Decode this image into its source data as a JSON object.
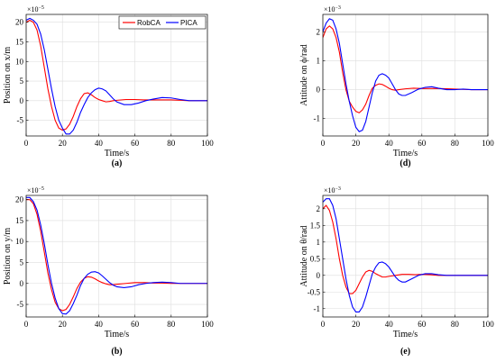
{
  "colors": {
    "robca": "#ff0000",
    "pica": "#0000ff",
    "grid": "#dedede",
    "axis": "#000000"
  },
  "chart_data": [
    {
      "type": "line",
      "caption": "(a)",
      "xlabel": "Time/s",
      "ylabel": "Position on x/m",
      "exponent_label": "×10",
      "exponent_power": "−5",
      "xlim": [
        0,
        100
      ],
      "ylim": [
        -9,
        22
      ],
      "xticks": [
        "0",
        "20",
        "40",
        "60",
        "80",
        "100"
      ],
      "yticks": [
        "-5",
        "0",
        "5",
        "10",
        "15",
        "20"
      ],
      "ytick_values": [
        -5,
        0,
        5,
        10,
        15,
        20
      ],
      "grid": true,
      "legend_position": "top-right",
      "series": [
        {
          "name": "RobCA",
          "color": "#ff0000",
          "x": [
            0,
            2,
            4,
            6,
            8,
            10,
            12,
            14,
            16,
            18,
            20,
            22,
            24,
            26,
            28,
            30,
            32,
            34,
            36,
            38,
            40,
            42,
            44,
            46,
            48,
            50,
            55,
            60,
            65,
            70,
            75,
            80,
            85,
            90,
            95,
            100
          ],
          "y": [
            20,
            20.5,
            20,
            18,
            14,
            8.5,
            3,
            -1.5,
            -5,
            -7,
            -7.5,
            -7.2,
            -6,
            -4,
            -1.5,
            0.5,
            1.8,
            2,
            1.5,
            0.8,
            0.3,
            0,
            -0.3,
            -0.2,
            0,
            0.1,
            0.3,
            0.3,
            0.2,
            0.2,
            0.2,
            0.2,
            0.1,
            0,
            0,
            0
          ]
        },
        {
          "name": "PICA",
          "color": "#0000ff",
          "x": [
            0,
            2,
            4,
            6,
            8,
            10,
            12,
            14,
            16,
            18,
            20,
            22,
            24,
            26,
            28,
            30,
            32,
            34,
            36,
            38,
            40,
            42,
            44,
            46,
            48,
            50,
            54,
            58,
            62,
            66,
            70,
            75,
            80,
            85,
            90,
            95,
            100
          ],
          "y": [
            20.5,
            21,
            20.5,
            19.5,
            17,
            13,
            8,
            3,
            -1.5,
            -5,
            -7,
            -8.5,
            -8.5,
            -7.5,
            -5.5,
            -3,
            -1,
            0.8,
            2,
            2.8,
            3.2,
            3,
            2.5,
            1.5,
            0.5,
            -0.3,
            -1,
            -1,
            -0.6,
            0,
            0.4,
            0.8,
            0.7,
            0.3,
            0,
            0,
            0
          ]
        }
      ]
    },
    {
      "type": "line",
      "caption": "(d)",
      "xlabel": "Time/s",
      "ylabel": "Attitude on ϕ/rad",
      "exponent_label": "×10",
      "exponent_power": "−3",
      "xlim": [
        0,
        100
      ],
      "ylim": [
        -1.6,
        2.6
      ],
      "xticks": [
        "0",
        "20",
        "40",
        "60",
        "80",
        "100"
      ],
      "yticks": [
        "-1",
        "0",
        "1",
        "2"
      ],
      "ytick_values": [
        -1,
        0,
        1,
        2
      ],
      "grid": true,
      "series": [
        {
          "name": "RobCA",
          "color": "#ff0000",
          "x": [
            0,
            2,
            4,
            6,
            8,
            10,
            12,
            14,
            16,
            18,
            20,
            22,
            24,
            26,
            28,
            30,
            32,
            34,
            36,
            38,
            40,
            42,
            44,
            46,
            50,
            55,
            60,
            65,
            70,
            75,
            80,
            85,
            90,
            100
          ],
          "y": [
            1.8,
            2.1,
            2.2,
            2.1,
            1.8,
            1.3,
            0.6,
            0,
            -0.4,
            -0.6,
            -0.75,
            -0.8,
            -0.7,
            -0.5,
            -0.2,
            0.05,
            0.15,
            0.2,
            0.18,
            0.12,
            0.05,
            0,
            -0.02,
            0,
            0.03,
            0.05,
            0.04,
            0.04,
            0.04,
            0.03,
            0.02,
            0.01,
            0,
            0
          ]
        },
        {
          "name": "PICA",
          "color": "#0000ff",
          "x": [
            0,
            2,
            4,
            6,
            8,
            10,
            12,
            14,
            16,
            18,
            20,
            22,
            24,
            26,
            28,
            30,
            32,
            34,
            36,
            38,
            40,
            42,
            44,
            46,
            48,
            50,
            54,
            58,
            62,
            66,
            70,
            75,
            80,
            85,
            90,
            100
          ],
          "y": [
            2.0,
            2.3,
            2.45,
            2.4,
            2.1,
            1.6,
            0.9,
            0.2,
            -0.4,
            -0.9,
            -1.3,
            -1.45,
            -1.4,
            -1.1,
            -0.6,
            -0.1,
            0.3,
            0.5,
            0.55,
            0.5,
            0.4,
            0.2,
            0,
            -0.15,
            -0.2,
            -0.2,
            -0.1,
            0.02,
            0.08,
            0.1,
            0.05,
            0,
            0,
            0.02,
            0,
            0
          ]
        }
      ]
    },
    {
      "type": "line",
      "caption": "(b)",
      "xlabel": "Time/s",
      "ylabel": "Position on y/m",
      "exponent_label": "×10",
      "exponent_power": "−5",
      "xlim": [
        0,
        100
      ],
      "ylim": [
        -8,
        21
      ],
      "xticks": [
        "0",
        "20",
        "40",
        "60",
        "80",
        "100"
      ],
      "yticks": [
        "-5",
        "0",
        "5",
        "10",
        "15",
        "20"
      ],
      "ytick_values": [
        -5,
        0,
        5,
        10,
        15,
        20
      ],
      "grid": true,
      "series": [
        {
          "name": "RobCA",
          "color": "#ff0000",
          "x": [
            0,
            2,
            4,
            6,
            8,
            10,
            12,
            14,
            16,
            18,
            20,
            22,
            24,
            26,
            28,
            30,
            32,
            34,
            36,
            38,
            40,
            42,
            44,
            46,
            48,
            50,
            55,
            60,
            65,
            70,
            75,
            80,
            90,
            100
          ],
          "y": [
            20,
            20,
            19,
            16.5,
            12.5,
            7.5,
            2.5,
            -1.5,
            -4.5,
            -6,
            -6.5,
            -6.2,
            -5,
            -3.2,
            -1.2,
            0.3,
            1.2,
            1.6,
            1.5,
            1.1,
            0.6,
            0.2,
            -0.1,
            -0.3,
            -0.3,
            -0.2,
            0,
            0.2,
            0.2,
            0.1,
            0.1,
            0,
            0,
            0
          ]
        },
        {
          "name": "PICA",
          "color": "#0000ff",
          "x": [
            0,
            2,
            4,
            6,
            8,
            10,
            12,
            14,
            16,
            18,
            20,
            22,
            24,
            26,
            28,
            30,
            32,
            34,
            36,
            38,
            40,
            42,
            44,
            46,
            48,
            50,
            54,
            58,
            62,
            66,
            70,
            75,
            80,
            85,
            90,
            100
          ],
          "y": [
            20.5,
            20.5,
            19.5,
            17.5,
            14,
            9.5,
            4.5,
            0,
            -3.5,
            -6,
            -7.2,
            -7.3,
            -6.5,
            -4.8,
            -2.8,
            -0.5,
            1.2,
            2.2,
            2.7,
            2.8,
            2.5,
            1.8,
            1,
            0.2,
            -0.4,
            -0.8,
            -1,
            -0.8,
            -0.3,
            0,
            0.2,
            0.3,
            0.2,
            0,
            0,
            0
          ]
        }
      ]
    },
    {
      "type": "line",
      "caption": "(e)",
      "xlabel": "Time/s",
      "ylabel": "Attitude on θ/rad",
      "exponent_label": "×10",
      "exponent_power": "−3",
      "xlim": [
        0,
        100
      ],
      "ylim": [
        -1.25,
        2.4
      ],
      "xticks": [
        "0",
        "20",
        "40",
        "60",
        "80",
        "100"
      ],
      "yticks": [
        "-1",
        "-0.5",
        "0",
        "0.5",
        "1",
        "1.5",
        "2"
      ],
      "ytick_values": [
        -1,
        -0.5,
        0,
        0.5,
        1,
        1.5,
        2
      ],
      "grid": true,
      "series": [
        {
          "name": "RobCA",
          "color": "#ff0000",
          "x": [
            0,
            2,
            4,
            6,
            8,
            10,
            12,
            14,
            16,
            18,
            20,
            22,
            24,
            26,
            28,
            30,
            32,
            34,
            36,
            38,
            40,
            44,
            48,
            52,
            56,
            60,
            65,
            70,
            80,
            90,
            100
          ],
          "y": [
            2.0,
            2.1,
            1.95,
            1.6,
            1.1,
            0.5,
            0,
            -0.35,
            -0.55,
            -0.55,
            -0.45,
            -0.25,
            -0.05,
            0.1,
            0.15,
            0.12,
            0.05,
            0,
            -0.05,
            -0.05,
            -0.03,
            0,
            0.03,
            0.03,
            0.02,
            0.03,
            0.02,
            0,
            0,
            0,
            0
          ]
        },
        {
          "name": "PICA",
          "color": "#0000ff",
          "x": [
            0,
            2,
            4,
            6,
            8,
            10,
            12,
            14,
            16,
            18,
            20,
            22,
            24,
            26,
            28,
            30,
            32,
            34,
            36,
            38,
            40,
            42,
            44,
            46,
            48,
            50,
            54,
            58,
            62,
            66,
            70,
            75,
            80,
            90,
            100
          ],
          "y": [
            2.2,
            2.3,
            2.3,
            2.1,
            1.7,
            1.1,
            0.5,
            -0.1,
            -0.6,
            -0.95,
            -1.1,
            -1.1,
            -0.95,
            -0.65,
            -0.3,
            0.05,
            0.25,
            0.38,
            0.4,
            0.35,
            0.25,
            0.1,
            -0.05,
            -0.15,
            -0.2,
            -0.2,
            -0.1,
            0,
            0.05,
            0.05,
            0.02,
            0,
            0,
            0,
            0
          ]
        }
      ]
    }
  ]
}
